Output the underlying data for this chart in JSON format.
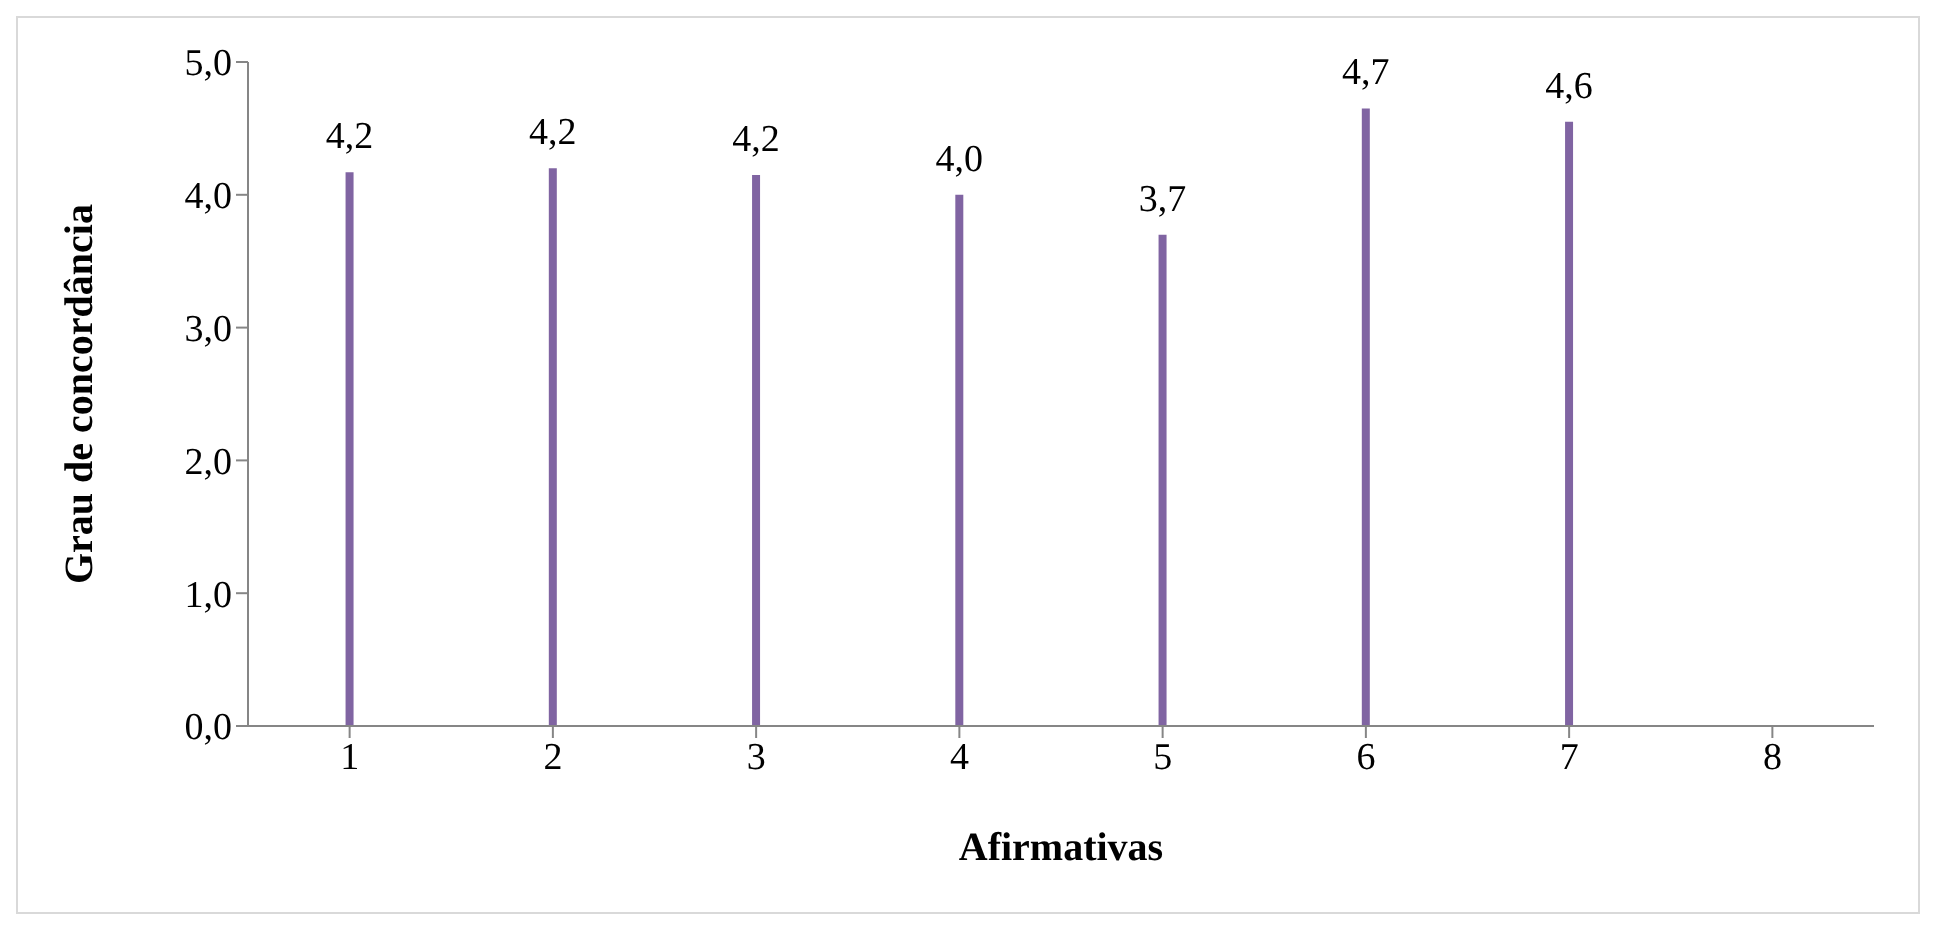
{
  "chart_data": {
    "type": "bar",
    "xlabel": "Afirmativas",
    "ylabel": "Grau de concordância",
    "categories": [
      "1",
      "2",
      "3",
      "4",
      "5",
      "6",
      "7",
      "8"
    ],
    "values": [
      4.17,
      4.2,
      4.15,
      4.0,
      3.7,
      4.65,
      4.55,
      null
    ],
    "value_labels": [
      "4,2",
      "4,2",
      "4,2",
      "4,0",
      "3,7",
      "4,7",
      "4,6",
      null
    ],
    "color": "#8064a2",
    "ylim": [
      0,
      5
    ],
    "yticks": [
      {
        "value": 0,
        "label": "0,0"
      },
      {
        "value": 1,
        "label": "1,0"
      },
      {
        "value": 2,
        "label": "2,0"
      },
      {
        "value": 3,
        "label": "3,0"
      },
      {
        "value": 4,
        "label": "4,0"
      },
      {
        "value": 5,
        "label": "5,0"
      }
    ],
    "grid": false,
    "legend": false
  }
}
